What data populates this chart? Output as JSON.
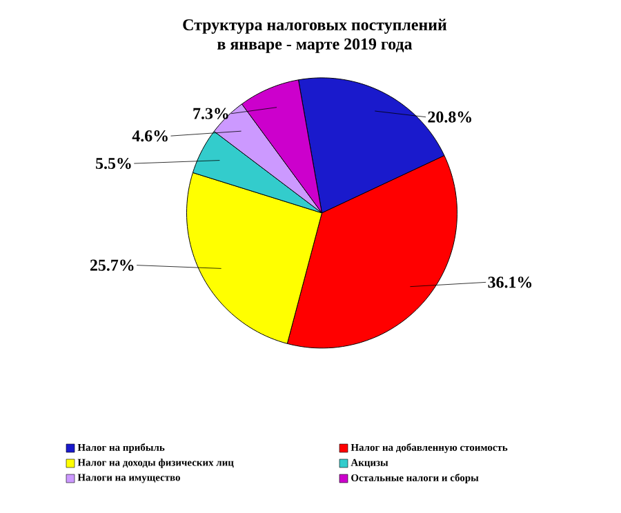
{
  "chart_data": {
    "type": "pie",
    "title": "Структура налоговых поступлений\nв  январе - марте 2019 года",
    "categories": [
      "Налог  на прибыль",
      "Налог на добавленную стоимость",
      "Налог на доходы  физических лиц",
      "Акцизы",
      "Налоги на имущество",
      "Остальные налоги и сборы"
    ],
    "values": [
      20.8,
      36.1,
      25.7,
      5.5,
      4.6,
      7.3
    ],
    "value_labels": [
      "20.8%",
      "36.1%",
      "25.7%",
      "5.5%",
      "4.6%",
      "7.3%"
    ],
    "colors": [
      "#1a1acc",
      "#ff0000",
      "#ffff00",
      "#33cccc",
      "#cc99ff",
      "#cc00cc"
    ],
    "legend": "bottom"
  }
}
